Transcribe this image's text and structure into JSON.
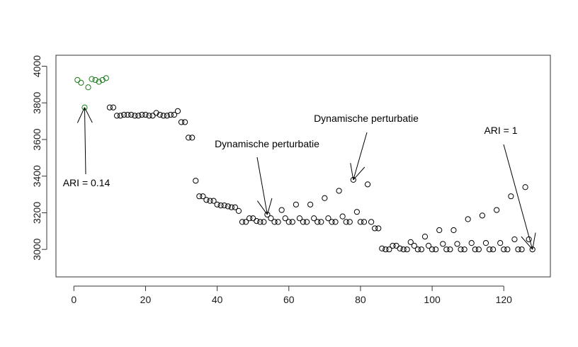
{
  "chart_data": {
    "type": "scatter",
    "title": "",
    "xlabel": "",
    "ylabel": "",
    "xlim": [
      -5,
      133
    ],
    "ylim": [
      2850,
      4060
    ],
    "x_ticks": [
      0,
      20,
      40,
      60,
      80,
      100,
      120
    ],
    "y_ticks": [
      3000,
      3200,
      3400,
      3600,
      3800,
      4000
    ],
    "grid": false,
    "legend": "none",
    "colors": {
      "highlight": "#1a7a1a",
      "default": "#000000",
      "axis": "#333333"
    },
    "series": [
      {
        "marker": "open-circle",
        "color": "#1a7a1a",
        "points": [
          [
            1,
            3925
          ],
          [
            2,
            3910
          ],
          [
            3,
            3775
          ],
          [
            4,
            3885
          ],
          [
            5,
            3930
          ],
          [
            6,
            3925
          ],
          [
            7,
            3915
          ],
          [
            8,
            3925
          ],
          [
            9,
            3935
          ]
        ]
      },
      {
        "marker": "open-circle",
        "color": "#000000",
        "points": [
          [
            10,
            3775
          ],
          [
            11,
            3775
          ],
          [
            12,
            3730
          ],
          [
            13,
            3730
          ],
          [
            14,
            3735
          ],
          [
            15,
            3735
          ],
          [
            16,
            3735
          ],
          [
            17,
            3730
          ],
          [
            18,
            3730
          ],
          [
            19,
            3735
          ],
          [
            20,
            3735
          ],
          [
            21,
            3730
          ],
          [
            22,
            3730
          ],
          [
            23,
            3745
          ],
          [
            24,
            3735
          ],
          [
            25,
            3730
          ],
          [
            26,
            3730
          ],
          [
            27,
            3735
          ],
          [
            28,
            3735
          ],
          [
            29,
            3755
          ],
          [
            30,
            3695
          ],
          [
            31,
            3695
          ],
          [
            32,
            3610
          ],
          [
            33,
            3610
          ],
          [
            34,
            3375
          ],
          [
            35,
            3290
          ],
          [
            36,
            3290
          ],
          [
            37,
            3270
          ],
          [
            38,
            3265
          ],
          [
            39,
            3265
          ],
          [
            40,
            3245
          ],
          [
            41,
            3240
          ],
          [
            42,
            3240
          ],
          [
            43,
            3235
          ],
          [
            44,
            3230
          ],
          [
            45,
            3230
          ],
          [
            46,
            3210
          ],
          [
            47,
            3150
          ],
          [
            48,
            3150
          ],
          [
            49,
            3170
          ],
          [
            50,
            3170
          ],
          [
            51,
            3155
          ],
          [
            52,
            3150
          ],
          [
            53,
            3150
          ],
          [
            54,
            3190
          ],
          [
            55,
            3170
          ],
          [
            56,
            3150
          ],
          [
            57,
            3150
          ],
          [
            58,
            3215
          ],
          [
            59,
            3170
          ],
          [
            60,
            3150
          ],
          [
            61,
            3150
          ],
          [
            62,
            3245
          ],
          [
            63,
            3170
          ],
          [
            64,
            3150
          ],
          [
            65,
            3150
          ],
          [
            66,
            3245
          ],
          [
            67,
            3170
          ],
          [
            68,
            3150
          ],
          [
            69,
            3150
          ],
          [
            70,
            3280
          ],
          [
            71,
            3170
          ],
          [
            72,
            3150
          ],
          [
            73,
            3150
          ],
          [
            74,
            3320
          ],
          [
            75,
            3180
          ],
          [
            76,
            3150
          ],
          [
            77,
            3150
          ],
          [
            78,
            3380
          ],
          [
            79,
            3205
          ],
          [
            80,
            3150
          ],
          [
            81,
            3150
          ],
          [
            82,
            3355
          ],
          [
            83,
            3150
          ],
          [
            84,
            3115
          ],
          [
            85,
            3115
          ],
          [
            86,
            3005
          ],
          [
            87,
            3000
          ],
          [
            88,
            3000
          ],
          [
            89,
            3020
          ],
          [
            90,
            3020
          ],
          [
            91,
            3005
          ],
          [
            92,
            3000
          ],
          [
            93,
            3000
          ],
          [
            94,
            3040
          ],
          [
            95,
            3020
          ],
          [
            96,
            3000
          ],
          [
            97,
            3000
          ],
          [
            98,
            3070
          ],
          [
            99,
            3020
          ],
          [
            100,
            3000
          ],
          [
            101,
            3000
          ],
          [
            102,
            3105
          ],
          [
            103,
            3030
          ],
          [
            104,
            3000
          ],
          [
            105,
            3000
          ],
          [
            106,
            3105
          ],
          [
            107,
            3030
          ],
          [
            108,
            3000
          ],
          [
            109,
            3000
          ],
          [
            110,
            3165
          ],
          [
            111,
            3035
          ],
          [
            112,
            3000
          ],
          [
            113,
            3000
          ],
          [
            114,
            3185
          ],
          [
            115,
            3035
          ],
          [
            116,
            3000
          ],
          [
            117,
            3000
          ],
          [
            118,
            3215
          ],
          [
            119,
            3035
          ],
          [
            120,
            3000
          ],
          [
            121,
            3000
          ],
          [
            122,
            3290
          ],
          [
            123,
            3055
          ],
          [
            124,
            3000
          ],
          [
            125,
            3000
          ],
          [
            126,
            3340
          ],
          [
            127,
            3055
          ],
          [
            128,
            3000
          ]
        ]
      }
    ],
    "annotations": [
      {
        "text": "ARI = 0.14",
        "target": [
          3,
          3775
        ]
      },
      {
        "text": "Dynamische perturbatie",
        "target": [
          54,
          3190
        ]
      },
      {
        "text": "Dynamische perturbatie",
        "target": [
          78,
          3380
        ]
      },
      {
        "text": "ARI = 1",
        "target": [
          128,
          3000
        ]
      }
    ]
  }
}
